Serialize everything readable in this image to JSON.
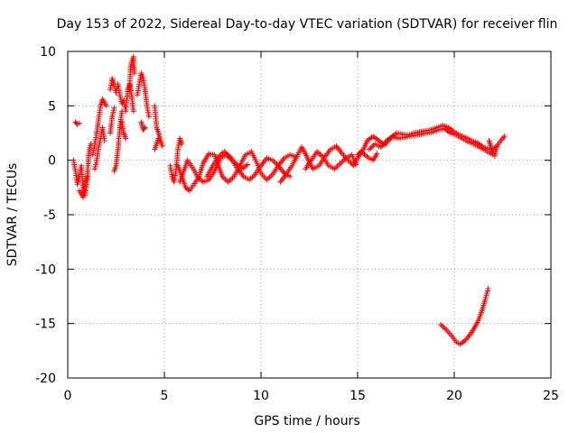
{
  "chart_data": {
    "type": "scatter",
    "title": "Day 153 of 2022, Sidereal Day-to-day VTEC variation (SDTVAR) for receiver flin",
    "xlabel": "GPS time / hours",
    "ylabel": "SDTVAR / TECUs",
    "xlim": [
      0,
      25
    ],
    "ylim": [
      -20,
      10
    ],
    "xticks": [
      0,
      5,
      10,
      15,
      20,
      25
    ],
    "yticks": [
      10,
      5,
      0,
      -5,
      -10,
      -15,
      -20
    ],
    "grid": true,
    "marker": "+",
    "series": [
      {
        "name": "SDTVAR",
        "color": "#ff0000",
        "tracks": [
          [
            [
              0.4,
              3.5
            ],
            [
              0.5,
              3.3
            ],
            [
              0.6,
              3.4
            ]
          ],
          [
            [
              0.3,
              0.0
            ],
            [
              0.4,
              -1.0
            ],
            [
              0.5,
              -2.2
            ],
            [
              0.6,
              -1.5
            ],
            [
              0.7,
              -0.5
            ],
            [
              0.8,
              -2.5
            ],
            [
              0.9,
              -3.2
            ],
            [
              1.0,
              -2.0
            ],
            [
              1.05,
              -0.5
            ],
            [
              1.1,
              0.8
            ],
            [
              1.2,
              1.5
            ]
          ],
          [
            [
              0.6,
              -2.8
            ],
            [
              0.8,
              -3.4
            ],
            [
              0.9,
              -2.0
            ],
            [
              1.0,
              -1.5
            ]
          ],
          [
            [
              1.3,
              0.5
            ],
            [
              1.4,
              1.5
            ],
            [
              1.5,
              2.5
            ],
            [
              1.6,
              3.8
            ],
            [
              1.7,
              5.0
            ],
            [
              1.8,
              5.6
            ],
            [
              1.9,
              5.3
            ],
            [
              2.0,
              5.0
            ]
          ],
          [
            [
              1.4,
              -0.8
            ],
            [
              1.5,
              0.0
            ],
            [
              1.6,
              1.2
            ],
            [
              1.7,
              2.0
            ],
            [
              1.8,
              3.0
            ],
            [
              1.9,
              1.8
            ]
          ],
          [
            [
              2.2,
              6.5
            ],
            [
              2.3,
              7.5
            ],
            [
              2.4,
              7.0
            ],
            [
              2.5,
              6.2
            ],
            [
              2.6,
              7.0
            ],
            [
              2.7,
              6.0
            ],
            [
              2.8,
              5.2
            ],
            [
              2.9,
              5.5
            ],
            [
              3.0,
              4.5
            ],
            [
              3.1,
              6.5
            ],
            [
              3.2,
              7.0
            ],
            [
              3.3,
              6.0
            ],
            [
              3.4,
              4.5
            ]
          ],
          [
            [
              2.4,
              -1.0
            ],
            [
              2.5,
              -0.5
            ],
            [
              2.6,
              1.0
            ],
            [
              2.7,
              3.0
            ],
            [
              2.8,
              4.5
            ]
          ],
          [
            [
              2.2,
              2.5
            ],
            [
              2.3,
              4.0
            ],
            [
              2.4,
              4.8
            ]
          ],
          [
            [
              2.8,
              3.5
            ],
            [
              2.9,
              2.5
            ],
            [
              3.0,
              2.0
            ]
          ],
          [
            [
              3.2,
              6.5
            ],
            [
              3.25,
              8.5
            ],
            [
              3.3,
              9.0
            ],
            [
              3.4,
              9.5
            ],
            [
              3.45,
              8.0
            ]
          ],
          [
            [
              3.6,
              6.0
            ],
            [
              3.7,
              7.0
            ],
            [
              3.8,
              8.0
            ],
            [
              3.9,
              7.5
            ],
            [
              4.0,
              6.5
            ],
            [
              4.1,
              5.0
            ],
            [
              4.2,
              4.0
            ]
          ],
          [
            [
              3.8,
              3.5
            ],
            [
              3.9,
              2.8
            ],
            [
              4.0,
              3.0
            ]
          ],
          [
            [
              4.5,
              5.0
            ],
            [
              4.6,
              3.0
            ],
            [
              4.7,
              2.5
            ],
            [
              4.8,
              1.8
            ],
            [
              4.9,
              1.3
            ]
          ],
          [
            [
              4.5,
              1.0
            ],
            [
              4.6,
              1.5
            ],
            [
              4.7,
              2.0
            ]
          ],
          [
            [
              5.3,
              -0.5
            ],
            [
              5.4,
              -1.5
            ],
            [
              5.5,
              -2.0
            ],
            [
              5.6,
              -1.0
            ],
            [
              5.7,
              1.0
            ],
            [
              5.8,
              2.0
            ],
            [
              5.9,
              1.5
            ]
          ],
          [
            [
              5.7,
              -0.5
            ],
            [
              5.9,
              -1.5
            ],
            [
              6.1,
              -2.5
            ],
            [
              6.3,
              -2.8
            ],
            [
              6.5,
              -2.3
            ],
            [
              6.8,
              -1.5
            ],
            [
              7.0,
              -0.3
            ],
            [
              7.3,
              0.6
            ],
            [
              7.6,
              0.5
            ],
            [
              7.8,
              -0.5
            ],
            [
              8.0,
              -1.5
            ],
            [
              8.3,
              -2.0
            ],
            [
              8.6,
              -1.5
            ],
            [
              8.9,
              -0.5
            ],
            [
              9.2,
              0.5
            ],
            [
              9.5,
              0.8
            ],
            [
              9.8,
              -0.3
            ],
            [
              10.0,
              -1.2
            ],
            [
              10.3,
              -1.8
            ],
            [
              10.6,
              -1.3
            ],
            [
              10.9,
              -0.5
            ],
            [
              11.2,
              0.2
            ],
            [
              11.5,
              0.5
            ],
            [
              11.8,
              0.3
            ]
          ],
          [
            [
              5.8,
              -2.0
            ],
            [
              6.0,
              -1.0
            ],
            [
              6.2,
              0.0
            ],
            [
              6.5,
              -0.8
            ],
            [
              6.7,
              -1.5
            ],
            [
              7.0,
              -2.0
            ],
            [
              7.3,
              -1.8
            ],
            [
              7.6,
              -1.0
            ],
            [
              7.9,
              0.2
            ],
            [
              8.2,
              0.5
            ],
            [
              8.5,
              0.0
            ],
            [
              8.8,
              -0.8
            ],
            [
              9.1,
              -1.5
            ],
            [
              9.4,
              -1.8
            ],
            [
              9.7,
              -1.3
            ],
            [
              10.0,
              -0.5
            ],
            [
              10.3,
              0.2
            ],
            [
              10.6,
              0.0
            ],
            [
              10.9,
              -0.5
            ],
            [
              11.2,
              -1.2
            ],
            [
              11.5,
              -1.5
            ]
          ],
          [
            [
              7.2,
              -1.5
            ],
            [
              7.5,
              -0.5
            ],
            [
              7.8,
              0.3
            ],
            [
              8.1,
              0.8
            ],
            [
              8.4,
              0.3
            ],
            [
              8.7,
              -0.3
            ],
            [
              9.0,
              -0.8
            ],
            [
              9.3,
              -0.4
            ]
          ],
          [
            [
              11.0,
              -2.0
            ],
            [
              11.3,
              -1.3
            ],
            [
              11.6,
              -0.5
            ],
            [
              11.9,
              0.5
            ],
            [
              12.1,
              1.2
            ],
            [
              12.3,
              0.6
            ],
            [
              12.5,
              -0.2
            ],
            [
              12.7,
              -0.8
            ],
            [
              13.0,
              -0.5
            ],
            [
              13.3,
              0.3
            ],
            [
              13.6,
              1.0
            ],
            [
              13.9,
              1.3
            ],
            [
              14.2,
              0.6
            ],
            [
              14.5,
              0.0
            ],
            [
              14.8,
              -0.5
            ],
            [
              15.0,
              0.2
            ],
            [
              15.2,
              0.8
            ],
            [
              15.5,
              0.3
            ],
            [
              15.8,
              0.0
            ],
            [
              16.0,
              0.6
            ]
          ],
          [
            [
              12.3,
              -0.8
            ],
            [
              12.6,
              0.0
            ],
            [
              12.9,
              0.8
            ],
            [
              13.2,
              0.3
            ],
            [
              13.5,
              -0.5
            ],
            [
              13.8,
              -0.8
            ],
            [
              14.1,
              -0.3
            ],
            [
              14.4,
              0.2
            ],
            [
              14.7,
              0.5
            ],
            [
              14.9,
              -0.4
            ]
          ],
          [
            [
              15.0,
              0.5
            ],
            [
              15.3,
              1.0
            ],
            [
              15.5,
              1.8
            ],
            [
              15.8,
              2.2
            ],
            [
              16.1,
              1.8
            ],
            [
              16.4,
              1.4
            ],
            [
              16.7,
              2.0
            ],
            [
              17.0,
              2.5
            ],
            [
              17.3,
              2.4
            ],
            [
              17.6,
              2.3
            ],
            [
              17.9,
              2.5
            ],
            [
              18.2,
              2.6
            ],
            [
              18.5,
              2.7
            ],
            [
              18.8,
              2.8
            ],
            [
              19.1,
              3.0
            ],
            [
              19.4,
              3.2
            ],
            [
              19.7,
              3.0
            ],
            [
              20.0,
              2.6
            ],
            [
              20.3,
              2.3
            ],
            [
              20.6,
              2.1
            ],
            [
              20.9,
              1.8
            ],
            [
              21.2,
              1.6
            ],
            [
              21.5,
              1.2
            ],
            [
              21.8,
              1.0
            ],
            [
              22.0,
              1.0
            ],
            [
              22.2,
              1.3
            ],
            [
              22.4,
              1.8
            ],
            [
              22.6,
              2.2
            ]
          ],
          [
            [
              15.6,
              1.0
            ],
            [
              15.9,
              1.5
            ],
            [
              16.2,
              1.2
            ],
            [
              16.5,
              1.8
            ],
            [
              16.8,
              2.2
            ],
            [
              17.1,
              2.0
            ],
            [
              17.4,
              2.1
            ],
            [
              17.7,
              2.2
            ],
            [
              18.0,
              2.3
            ],
            [
              18.3,
              2.4
            ],
            [
              18.6,
              2.5
            ],
            [
              18.9,
              2.6
            ],
            [
              19.2,
              2.8
            ],
            [
              19.5,
              2.9
            ],
            [
              19.8,
              2.5
            ],
            [
              20.1,
              2.3
            ],
            [
              20.4,
              2.0
            ],
            [
              20.7,
              1.7
            ],
            [
              21.0,
              1.5
            ],
            [
              21.3,
              1.2
            ],
            [
              21.6,
              0.9
            ],
            [
              21.9,
              0.6
            ]
          ],
          [
            [
              21.8,
              1.8
            ],
            [
              21.9,
              1.2
            ],
            [
              22.0,
              0.5
            ],
            [
              22.1,
              0.4
            ],
            [
              22.2,
              1.2
            ]
          ],
          [
            [
              19.3,
              -15.1
            ],
            [
              19.6,
              -15.6
            ],
            [
              19.9,
              -16.2
            ],
            [
              20.1,
              -16.7
            ],
            [
              20.3,
              -16.9
            ],
            [
              20.6,
              -16.5
            ],
            [
              20.9,
              -15.8
            ],
            [
              21.2,
              -14.9
            ],
            [
              21.4,
              -14.0
            ],
            [
              21.6,
              -12.8
            ],
            [
              21.75,
              -11.8
            ]
          ]
        ]
      }
    ]
  }
}
